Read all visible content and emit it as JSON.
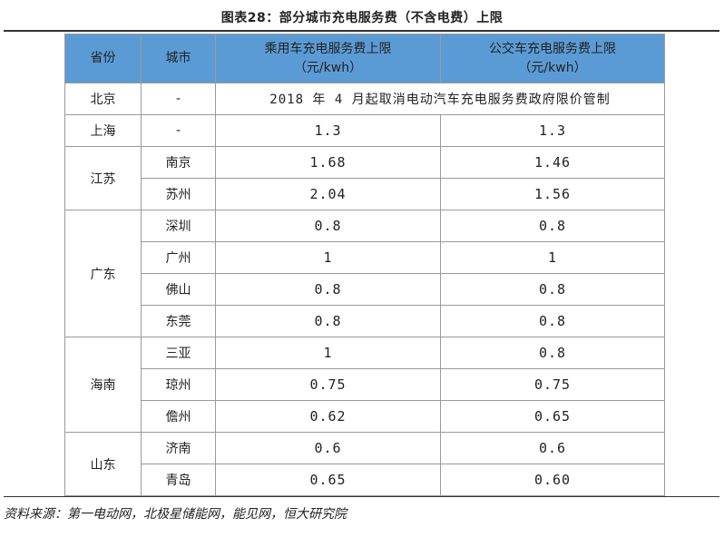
{
  "title": "图表28：部分城市充电服务费（不含电费）上限",
  "headers": {
    "province": "省份",
    "city": "城市",
    "passenger_line1": "乘用车充电服务费上限",
    "passenger_line2": "（元/kwh）",
    "bus_line1": "公交车充电服务费上限",
    "bus_line2": "（元/kwh）"
  },
  "rows": {
    "beijing": {
      "province": "北京",
      "city": "-",
      "note": "2018 年 4 月起取消电动汽车充电服务费政府限价管制"
    },
    "shanghai": {
      "province": "上海",
      "city": "-",
      "passenger": "1.3",
      "bus": "1.3"
    }
  },
  "groups": [
    {
      "province": "江苏",
      "cities": [
        {
          "city": "南京",
          "passenger": "1.68",
          "bus": "1.46"
        },
        {
          "city": "苏州",
          "passenger": "2.04",
          "bus": "1.56"
        }
      ]
    },
    {
      "province": "广东",
      "cities": [
        {
          "city": "深圳",
          "passenger": "0.8",
          "bus": "0.8"
        },
        {
          "city": "广州",
          "passenger": "1",
          "bus": "1"
        },
        {
          "city": "佛山",
          "passenger": "0.8",
          "bus": "0.8"
        },
        {
          "city": "东莞",
          "passenger": "0.8",
          "bus": "0.8"
        }
      ]
    },
    {
      "province": "海南",
      "cities": [
        {
          "city": "三亚",
          "passenger": "1",
          "bus": "0.8"
        },
        {
          "city": "琼州",
          "passenger": "0.75",
          "bus": "0.75"
        },
        {
          "city": "儋州",
          "passenger": "0.62",
          "bus": "0.65"
        }
      ]
    },
    {
      "province": "山东",
      "cities": [
        {
          "city": "济南",
          "passenger": "0.6",
          "bus": "0.6"
        },
        {
          "city": "青岛",
          "passenger": "0.65",
          "bus": "0.60"
        }
      ]
    }
  ],
  "source": "资料来源：第一电动网，北极星储能网，能见网，恒大研究院",
  "colors": {
    "header_bg": "#5b9bd5",
    "border": "#9a9a9a"
  }
}
